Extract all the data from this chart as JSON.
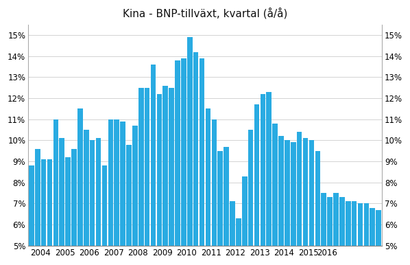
{
  "title": "Kina - BNP-tillväxt, kvartal (å/å)",
  "bar_color": "#29ABE2",
  "ylim": [
    0.05,
    0.155
  ],
  "yticks": [
    0.05,
    0.06,
    0.07,
    0.08,
    0.09,
    0.1,
    0.11,
    0.12,
    0.13,
    0.14,
    0.15
  ],
  "yticklabels": [
    "5%",
    "6%",
    "7%",
    "8%",
    "9%",
    "10%",
    "11%",
    "12%",
    "13%",
    "14%",
    "15%"
  ],
  "values": [
    0.088,
    0.096,
    0.091,
    0.091,
    0.11,
    0.101,
    0.092,
    0.096,
    0.115,
    0.105,
    0.1,
    0.101,
    0.088,
    0.11,
    0.11,
    0.109,
    0.098,
    0.107,
    0.125,
    0.125,
    0.136,
    0.122,
    0.126,
    0.125,
    0.138,
    0.139,
    0.149,
    0.142,
    0.139,
    0.115,
    0.11,
    0.095,
    0.097,
    0.071,
    0.063,
    0.083,
    0.105,
    0.117,
    0.122,
    0.123,
    0.108,
    0.102,
    0.1,
    0.099,
    0.104,
    0.101,
    0.1,
    0.095,
    0.075,
    0.073,
    0.075,
    0.073,
    0.071,
    0.071,
    0.07,
    0.07,
    0.068,
    0.067
  ],
  "xtick_years": [
    2004,
    2005,
    2006,
    2007,
    2008,
    2009,
    2010,
    2011,
    2012,
    2013,
    2014,
    2015,
    2016
  ],
  "background_color": "#ffffff",
  "title_fontsize": 11,
  "grid_color": "#cccccc"
}
